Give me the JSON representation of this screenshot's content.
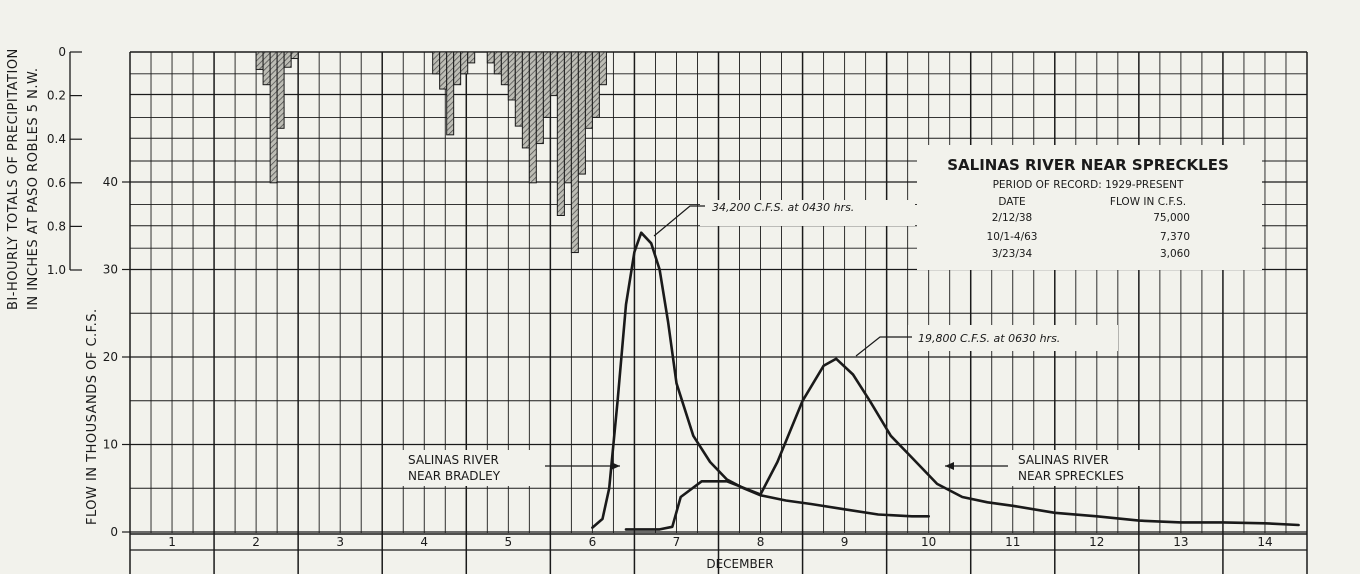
{
  "chart_data": {
    "type": "line",
    "title": "",
    "xlabel": "DECEMBER",
    "x_ticks": [
      "1",
      "2",
      "3",
      "4",
      "5",
      "6",
      "7",
      "8",
      "9",
      "10",
      "11",
      "12",
      "13",
      "14"
    ],
    "xlim": [
      0.5,
      14.5
    ],
    "ylabel": "FLOW IN THOUSANDS OF C.F.S.",
    "yticks": [
      "0",
      "10",
      "20",
      "30",
      "40"
    ],
    "ylim": [
      0,
      55
    ],
    "precip_ylabel_line1": "BI-HOURLY TOTALS OF PRECIPITATION",
    "precip_ylabel_line2": "IN INCHES AT PASO ROBLES 5 N.W.",
    "precip_yticks": [
      "0",
      "0.2",
      "0.4",
      "0.6",
      "0.8",
      "1.0"
    ],
    "precip_ylim": [
      0,
      1.0
    ],
    "series": [
      {
        "name": "SALINAS RIVER NEAR BRADLEY",
        "x": [
          6.0,
          6.12,
          6.2,
          6.3,
          6.4,
          6.5,
          6.58,
          6.7,
          6.8,
          6.9,
          7.0,
          7.2,
          7.4,
          7.6,
          7.8,
          8.0,
          8.3,
          8.6,
          9.0,
          9.4,
          9.8,
          10.0
        ],
        "values": [
          0.5,
          1.5,
          5,
          15,
          26,
          32,
          34.2,
          33,
          30,
          24,
          17,
          11,
          8,
          6,
          5,
          4.2,
          3.6,
          3.2,
          2.6,
          2.0,
          1.8,
          1.8
        ]
      },
      {
        "name": "SALINAS RIVER NEAR SPRECKLES",
        "x": [
          6.4,
          6.8,
          6.95,
          7.05,
          7.3,
          7.6,
          8.0,
          8.2,
          8.5,
          8.75,
          8.9,
          9.1,
          9.3,
          9.55,
          9.8,
          10.1,
          10.4,
          10.7,
          11.0,
          11.5,
          12.0,
          12.5,
          13.0,
          13.5,
          14.0,
          14.4
        ],
        "values": [
          0.3,
          0.3,
          0.6,
          4,
          5.8,
          5.8,
          4.3,
          8,
          15,
          19,
          19.8,
          18,
          15,
          11,
          8.5,
          5.5,
          4,
          3.4,
          3.0,
          2.2,
          1.8,
          1.3,
          1.1,
          1.1,
          1.0,
          0.8
        ]
      }
    ],
    "precipitation_bars": [
      {
        "start": 2.0,
        "end": 2.083,
        "value": 0.08
      },
      {
        "start": 2.083,
        "end": 2.167,
        "value": 0.15
      },
      {
        "start": 2.167,
        "end": 2.25,
        "value": 0.6
      },
      {
        "start": 2.25,
        "end": 2.333,
        "value": 0.35
      },
      {
        "start": 2.333,
        "end": 2.417,
        "value": 0.07
      },
      {
        "start": 2.417,
        "end": 2.5,
        "value": 0.03
      },
      {
        "start": 4.1,
        "end": 4.183,
        "value": 0.1
      },
      {
        "start": 4.183,
        "end": 4.267,
        "value": 0.17
      },
      {
        "start": 4.267,
        "end": 4.35,
        "value": 0.38
      },
      {
        "start": 4.35,
        "end": 4.433,
        "value": 0.15
      },
      {
        "start": 4.433,
        "end": 4.517,
        "value": 0.1
      },
      {
        "start": 4.517,
        "end": 4.6,
        "value": 0.05
      },
      {
        "start": 4.75,
        "end": 4.833,
        "value": 0.05
      },
      {
        "start": 4.833,
        "end": 4.917,
        "value": 0.1
      },
      {
        "start": 4.917,
        "end": 5.0,
        "value": 0.15
      },
      {
        "start": 5.0,
        "end": 5.083,
        "value": 0.22
      },
      {
        "start": 5.083,
        "end": 5.167,
        "value": 0.34
      },
      {
        "start": 5.167,
        "end": 5.25,
        "value": 0.44
      },
      {
        "start": 5.25,
        "end": 5.333,
        "value": 0.6
      },
      {
        "start": 5.333,
        "end": 5.417,
        "value": 0.42
      },
      {
        "start": 5.417,
        "end": 5.5,
        "value": 0.3
      },
      {
        "start": 5.5,
        "end": 5.583,
        "value": 0.2
      },
      {
        "start": 5.583,
        "end": 5.667,
        "value": 0.75
      },
      {
        "start": 5.667,
        "end": 5.75,
        "value": 0.6
      },
      {
        "start": 5.75,
        "end": 5.833,
        "value": 0.92
      },
      {
        "start": 5.833,
        "end": 5.917,
        "value": 0.56
      },
      {
        "start": 5.917,
        "end": 6.0,
        "value": 0.35
      },
      {
        "start": 6.0,
        "end": 6.083,
        "value": 0.3
      },
      {
        "start": 6.083,
        "end": 6.167,
        "value": 0.15
      }
    ],
    "annotations": [
      {
        "text": "34,200 C.F.S. at 0430 hrs.",
        "x": 6.58,
        "y": 34.2
      },
      {
        "text": "19,800 C.F.S. at 0630 hrs.",
        "x": 8.9,
        "y": 19.8
      }
    ],
    "record_box": {
      "title": "SALINAS RIVER NEAR SPRECKLES",
      "period": "PERIOD OF RECORD: 1929-PRESENT",
      "col_date": "DATE",
      "col_flow": "FLOW IN C.F.S.",
      "rows": [
        {
          "date": "2/12/38",
          "flow": "75,000"
        },
        {
          "date": "10/1-4/63",
          "flow": "7,370"
        },
        {
          "date": "3/23/34",
          "flow": "3,060"
        }
      ]
    },
    "labels": {
      "bradley_line1": "SALINAS RIVER",
      "bradley_line2": "NEAR BRADLEY",
      "spreckles_line1": "SALINAS RIVER",
      "spreckles_line2": "NEAR SPRECKLES"
    },
    "grid": true,
    "colors": {
      "ink": "#1a1a1a",
      "paper": "#f2f2ec",
      "hatch": "#555555"
    }
  }
}
